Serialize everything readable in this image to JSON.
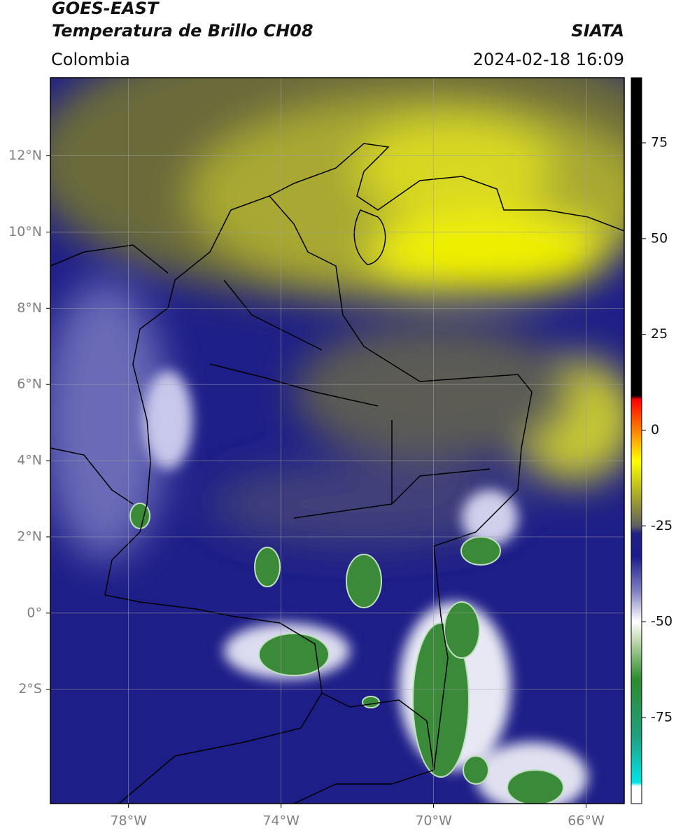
{
  "chart_data": {
    "type": "map",
    "title": "GOES-EAST",
    "subtitle": "Temperatura de Brillo CH08",
    "source": "SIATA",
    "region": "Colombia",
    "datetime": "2024-02-18 16:09",
    "xlim": [
      -80.05,
      -65.0
    ],
    "ylim": [
      -5.0,
      14.05
    ],
    "xticks": [
      {
        "value": -78,
        "label": "78°W"
      },
      {
        "value": -74,
        "label": "74°W"
      },
      {
        "value": -70,
        "label": "70°W"
      },
      {
        "value": -66,
        "label": "66°W"
      }
    ],
    "yticks": [
      {
        "value": 12,
        "label": "12°N"
      },
      {
        "value": 10,
        "label": "10°N"
      },
      {
        "value": 8,
        "label": "8°N"
      },
      {
        "value": 6,
        "label": "6°N"
      },
      {
        "value": 4,
        "label": "4°N"
      },
      {
        "value": 2,
        "label": "2°N"
      },
      {
        "value": 0,
        "label": "0°"
      },
      {
        "value": -2,
        "label": "2°S"
      }
    ],
    "grid": true,
    "colorbar": {
      "lim": [
        -97.5,
        92
      ],
      "ticks": [
        75,
        50,
        25,
        0,
        -25,
        -50,
        -75
      ],
      "stops": [
        {
          "value": -97.5,
          "color": "#ffffff"
        },
        {
          "value": -93,
          "color": "#ffffff"
        },
        {
          "value": -92,
          "color": "#00e5e5"
        },
        {
          "value": -80,
          "color": "#20a080"
        },
        {
          "value": -65,
          "color": "#2e8b2e"
        },
        {
          "value": -55,
          "color": "#c0d8b0"
        },
        {
          "value": -50,
          "color": "#ffffff"
        },
        {
          "value": -42,
          "color": "#8080c0"
        },
        {
          "value": -33,
          "color": "#1c1c8c"
        },
        {
          "value": -27,
          "color": "#202080"
        },
        {
          "value": -25,
          "color": "#606060"
        },
        {
          "value": -18,
          "color": "#a0a030"
        },
        {
          "value": -8,
          "color": "#ffff00"
        },
        {
          "value": 0,
          "color": "#ff8000"
        },
        {
          "value": 8,
          "color": "#ff0000"
        },
        {
          "value": 9,
          "color": "#000000"
        },
        {
          "value": 92,
          "color": "#000000"
        }
      ]
    }
  }
}
